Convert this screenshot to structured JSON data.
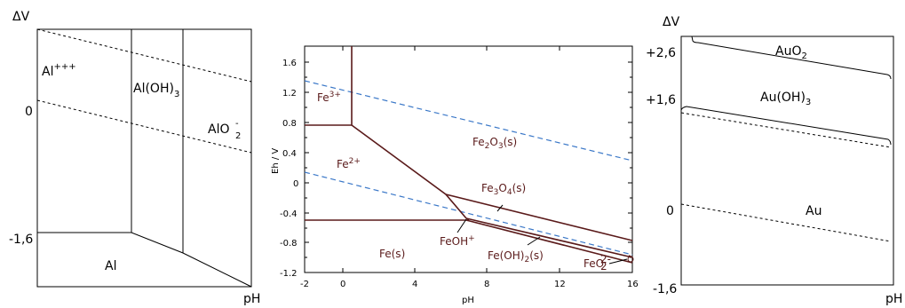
{
  "left_diagram": {
    "y_axis_label": "ΔV",
    "x_axis_label": "pH",
    "y_ticks": [
      "0",
      "-1,6"
    ],
    "regions": {
      "al_ion": "Al",
      "al_ion_charge": "+++",
      "al_oh3": "Al(OH)",
      "al_oh3_sub": "3",
      "alo2": "AlO",
      "alo2_sup": "-",
      "alo2_sub": "2",
      "al_metal": "Al"
    }
  },
  "middle_diagram": {
    "y_axis_label": "Eh / V",
    "x_axis_label": "pH",
    "y_ticks": [
      "1.6",
      "1.2",
      "0.8",
      "0.4",
      "0",
      "-0.4",
      "-0.8",
      "-1.2"
    ],
    "x_ticks": [
      "-2",
      "0",
      "4",
      "8",
      "12",
      "16"
    ],
    "regions": {
      "fe3": "Fe",
      "fe3_sup": "3+",
      "fe2": "Fe",
      "fe2_sup": "2+",
      "fe2o3": "Fe",
      "fe2o3_sub": "2",
      "fe2o3_mid": "O",
      "fe2o3_sub2": "3",
      "fe2o3_tail": "(s)",
      "fe3o4": "Fe",
      "fe3o4_sub": "3",
      "fe3o4_mid": "O",
      "fe3o4_sub2": "4",
      "fe3o4_tail": "(s)",
      "feoh": "FeOH",
      "feoh_sup": "+",
      "fe_s": "Fe(s)",
      "feoh2": "Fe(OH)",
      "feoh2_sub": "2",
      "feoh2_tail": "(s)",
      "feo2": "FeO",
      "feo2_sup": "2-",
      "feo2_sub": "2"
    }
  },
  "right_diagram": {
    "y_axis_label": "ΔV",
    "x_axis_label": "pH",
    "y_ticks": [
      "+2,6",
      "+1,6",
      "0",
      "-1,6"
    ],
    "regions": {
      "auo2": "AuO",
      "auo2_sub": "2",
      "auoh3": "Au(OH)",
      "auoh3_sub": "3",
      "au": "Au"
    }
  }
}
